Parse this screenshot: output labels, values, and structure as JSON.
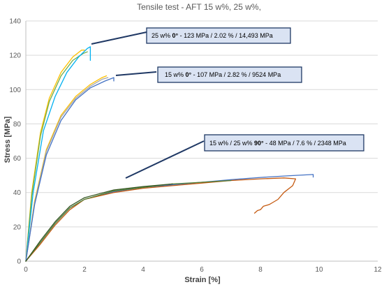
{
  "chart_data": {
    "type": "line",
    "title": "Tensile test - AFT 15 w%, 25 w%,",
    "xlabel": "Strain [%]",
    "ylabel": "Stress [MPa]",
    "xlim": [
      0,
      12
    ],
    "ylim": [
      0,
      140
    ],
    "xticks": [
      0,
      2,
      4,
      6,
      8,
      10,
      12
    ],
    "yticks": [
      0,
      20,
      40,
      60,
      80,
      100,
      120,
      140
    ],
    "grid": "horizontal",
    "series": [
      {
        "color": "#ffc000",
        "x": [
          0,
          0.2,
          0.5,
          0.8,
          1.2,
          1.6,
          1.9,
          2.0
        ],
        "y": [
          0,
          40,
          75,
          95,
          110,
          119,
          123,
          123
        ]
      },
      {
        "color": "#70ad47",
        "x": [
          0,
          0.2,
          0.5,
          0.8,
          1.2,
          1.6,
          1.95,
          2.1
        ],
        "y": [
          0,
          38,
          73,
          93,
          108,
          117,
          121,
          122
        ]
      },
      {
        "color": "#00b0f0",
        "x": [
          0,
          0.25,
          0.6,
          1.0,
          1.4,
          1.8,
          2.1,
          2.2,
          2.2
        ],
        "y": [
          0,
          40,
          76,
          96,
          110,
          119,
          124,
          125,
          117
        ]
      },
      {
        "color": "#ffc000",
        "x": [
          0,
          0.3,
          0.7,
          1.2,
          1.7,
          2.2,
          2.6,
          2.75
        ],
        "y": [
          0,
          35,
          65,
          85,
          96,
          103,
          107,
          108
        ]
      },
      {
        "color": "#a5a5a5",
        "x": [
          0,
          0.3,
          0.7,
          1.2,
          1.7,
          2.2,
          2.6,
          2.8
        ],
        "y": [
          0,
          34,
          64,
          84,
          95,
          102,
          106,
          107
        ]
      },
      {
        "color": "#4472c4",
        "x": [
          0,
          0.3,
          0.7,
          1.2,
          1.7,
          2.2,
          2.7,
          3.0,
          3.0
        ],
        "y": [
          0,
          33,
          62,
          82,
          94,
          101,
          105,
          107,
          105
        ]
      },
      {
        "color": "#4472c4",
        "x": [
          0,
          0.5,
          1.0,
          1.5,
          2.0,
          3.0,
          4.0,
          5.0,
          6.0,
          7.0,
          8.0,
          9.0,
          9.8,
          9.8
        ],
        "y": [
          0,
          11,
          22,
          31,
          36,
          40.5,
          43,
          44.5,
          46,
          47.5,
          48.8,
          49.8,
          50.5,
          49
        ]
      },
      {
        "color": "#c55a11",
        "x": [
          0,
          0.5,
          1.0,
          1.5,
          2.0,
          3.0,
          4.0,
          5.0,
          6.0,
          7.0,
          8.0,
          8.8,
          9.2,
          9.1,
          8.8,
          8.6,
          8.4,
          8.3,
          8.1,
          8.0,
          7.9,
          7.8
        ],
        "y": [
          0,
          10,
          21,
          30,
          36,
          40,
          42.5,
          44,
          45.5,
          47,
          48,
          48.5,
          48,
          44,
          40,
          36,
          34,
          33,
          32,
          30,
          29.5,
          28
        ]
      },
      {
        "color": "#548235",
        "x": [
          0,
          0.5,
          1.0,
          1.5,
          2.0,
          3.0,
          4.0,
          5.0,
          6.0,
          7.0
        ],
        "y": [
          0,
          11,
          22,
          31,
          36,
          41,
          43,
          45,
          46,
          47
        ]
      },
      {
        "color": "#375623",
        "x": [
          0,
          0.5,
          1.0,
          1.5,
          2.0,
          3.0,
          4.0,
          5.0
        ],
        "y": [
          0,
          12,
          23,
          32,
          37,
          41.5,
          43.5,
          45
        ]
      }
    ],
    "annotations": [
      {
        "prefix": "25 w% ",
        "bold": "0°",
        "suffix": " - 123 MPa / 2.02 % / 14,493 MPa"
      },
      {
        "prefix": "15 w% ",
        "bold": "0°",
        "suffix": " - 107 MPa / 2.82 % / 9524 MPa"
      },
      {
        "prefix": "15 w% / 25 w% ",
        "bold": "90°",
        "suffix": " - 48 MPa / 7.6 % / 2348 MPa"
      }
    ]
  }
}
